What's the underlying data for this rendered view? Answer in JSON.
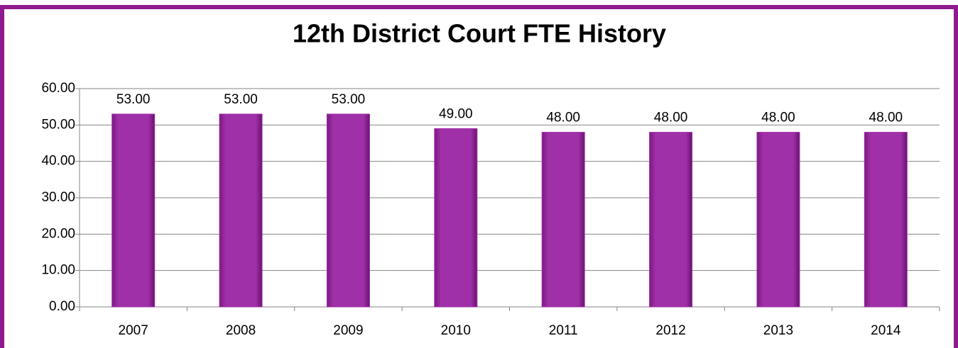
{
  "chart_data": {
    "type": "bar",
    "title": "12th District Court FTE History",
    "categories": [
      "2007",
      "2008",
      "2009",
      "2010",
      "2011",
      "2012",
      "2013",
      "2014"
    ],
    "values": [
      53,
      53,
      53,
      49,
      48,
      48,
      48,
      48
    ],
    "value_labels": [
      "53.00",
      "53.00",
      "53.00",
      "49.00",
      "48.00",
      "48.00",
      "48.00",
      "48.00"
    ],
    "color": "#a030a8",
    "ylim": [
      0,
      60
    ],
    "yticks": [
      {
        "value": 0,
        "label": "0.00"
      },
      {
        "value": 10,
        "label": "10.00"
      },
      {
        "value": 20,
        "label": "20.00"
      },
      {
        "value": 30,
        "label": "30.00"
      },
      {
        "value": 40,
        "label": "40.00"
      },
      {
        "value": 50,
        "label": "50.00"
      },
      {
        "value": 60,
        "label": "60.00"
      }
    ],
    "grid": true
  }
}
